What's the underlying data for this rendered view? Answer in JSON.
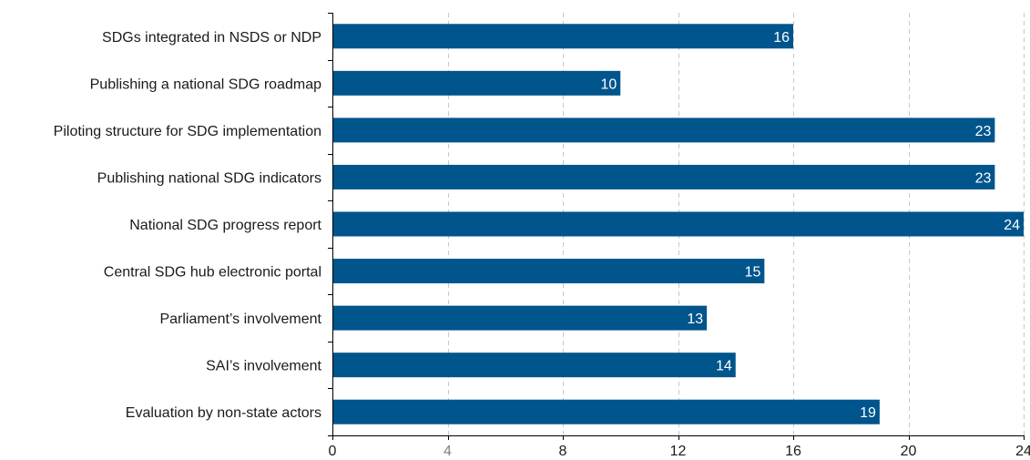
{
  "chart_data": {
    "type": "bar",
    "orientation": "horizontal",
    "categories": [
      "SDGs integrated in NSDS or NDP",
      "Publishing a national SDG roadmap",
      "Piloting structure for SDG implementation",
      "Publishing national SDG indicators",
      "National SDG progress report",
      "Central SDG hub electronic portal",
      "Parliament’s involvement",
      "SAI’s involvement",
      "Evaluation by non-state actors"
    ],
    "values": [
      16,
      10,
      23,
      23,
      24,
      15,
      13,
      14,
      19
    ],
    "data_labels": [
      "16",
      "10",
      "23",
      "23",
      "24",
      "15",
      "13",
      "14",
      "19"
    ],
    "xlim": [
      0,
      24
    ],
    "x_ticks": [
      0,
      4,
      8,
      12,
      16,
      20,
      24
    ],
    "x_tick_labels": [
      "0",
      "4",
      "8",
      "12",
      "16",
      "20",
      "24"
    ],
    "title": "",
    "xlabel": "",
    "ylabel": "",
    "grid": "vertical dashed",
    "legend": "none",
    "bar_color": "#00558c",
    "label_color": "#ffffff"
  }
}
